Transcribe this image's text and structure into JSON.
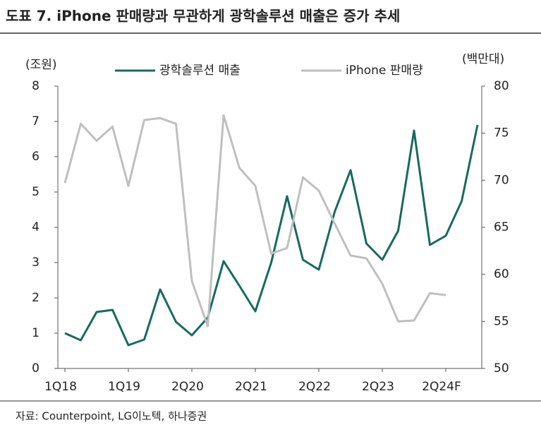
{
  "chart_data": {
    "type": "line",
    "title": "도표 7. iPhone 판매량과 무관하게 광학솔루션 매출은 증가 추세",
    "source": "자료: Counterpoint, LG이노텍, 하나증권",
    "y_label": "(조원)",
    "y2_label": "(백만대)",
    "categories": [
      "1Q18",
      null,
      null,
      null,
      "1Q19",
      null,
      null,
      null,
      "2Q20",
      null,
      null,
      null,
      "2Q21",
      null,
      null,
      null,
      "2Q22",
      null,
      null,
      null,
      "2Q23",
      null,
      null,
      null,
      "2Q24F",
      null,
      null
    ],
    "series": [
      {
        "name": "광학솔루션 매출",
        "color": "#166b5e",
        "axis": "y",
        "values": [
          1.0,
          0.8,
          1.6,
          1.66,
          0.66,
          0.82,
          2.24,
          1.32,
          0.94,
          1.44,
          3.04,
          2.34,
          1.62,
          3.0,
          4.88,
          3.08,
          2.8,
          4.44,
          5.62,
          3.54,
          3.08,
          3.9,
          6.74,
          3.5,
          3.76,
          4.74,
          6.9
        ]
      },
      {
        "name": "iPhone 판매량",
        "color": "#bfbfbf",
        "axis": "y2",
        "values": [
          69.7,
          76.0,
          74.2,
          75.7,
          69.4,
          76.4,
          76.6,
          76.0,
          59.3,
          54.5,
          76.9,
          71.3,
          69.4,
          62.2,
          62.8,
          70.3,
          68.9,
          65.4,
          62.0,
          61.7,
          59.0,
          55.0,
          55.1,
          58.0,
          57.8,
          null,
          null
        ]
      }
    ],
    "ylim": [
      0,
      8
    ],
    "yticks": [
      0,
      1,
      2,
      3,
      4,
      5,
      6,
      7,
      8
    ],
    "y2lim": [
      50,
      80
    ],
    "y2ticks": [
      50,
      55,
      60,
      65,
      70,
      75,
      80
    ],
    "legend": "top"
  }
}
